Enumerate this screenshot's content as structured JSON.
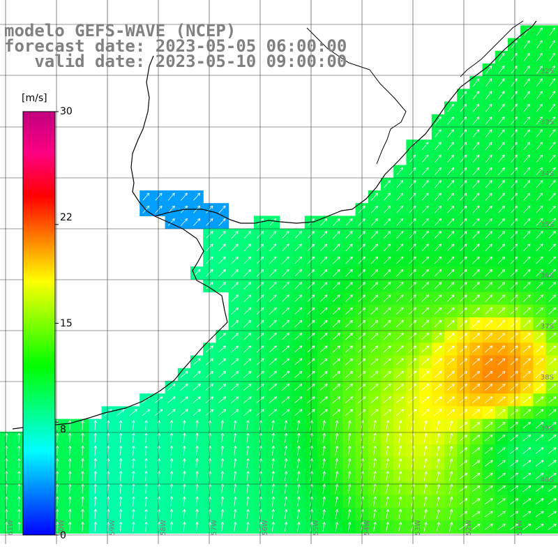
{
  "title": {
    "model": "modelo GEFS-WAVE (NCEP)",
    "forecast": "forecast date: 2023-05-05 06:00:00",
    "valid": "   valid date: 2023-05-10 09:00:00"
  },
  "colorbar": {
    "unit": "[m/s]",
    "ticks": [
      {
        "label": "30",
        "value": 30
      },
      {
        "label": "22",
        "value": 22
      },
      {
        "label": "15",
        "value": 15
      },
      {
        "label": "8",
        "value": 8
      },
      {
        "label": "0",
        "value": 0
      }
    ],
    "colors": [
      "#0000ff",
      "#0080ff",
      "#00ffff",
      "#00ff80",
      "#00ff00",
      "#80ff00",
      "#ffff00",
      "#ff8000",
      "#ff0000",
      "#ff0080",
      "#c00080"
    ]
  },
  "lat_labels": [
    "32S",
    "33S",
    "34S",
    "35S",
    "36S",
    "37S",
    "38S",
    "39S",
    "40S"
  ],
  "lon_labels": [
    "61W",
    "60W",
    "59W",
    "58W",
    "57W",
    "56W",
    "55W",
    "54W",
    "53W",
    "52W",
    "51W"
  ],
  "colors": {
    "land": "#ffffff",
    "coast": "#000000",
    "grid": "#333333",
    "arrows": "#ffffff",
    "title": "#808080"
  }
}
